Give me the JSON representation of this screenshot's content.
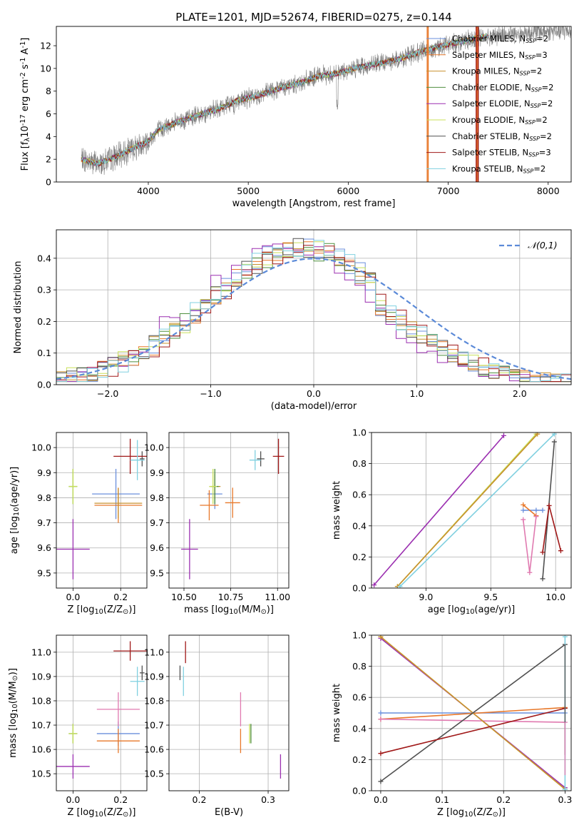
{
  "figure_title": "PLATE=1201, MJD=52674, FIBERID=0275, z=0.144",
  "series_names": [
    "Chabrier MILES, N$_{SSP}$=2",
    "Salpeter MILES, N$_{SSP}$=3",
    "Kroupa MILES, N$_{SSP}$=2",
    "Chabrier ELODIE, N$_{SSP}$=2",
    "Salpeter ELODIE, N$_{SSP}$=2",
    "Kroupa ELODIE, N$_{SSP}$=2",
    "Chabrier STELIB, N$_{SSP}$=2",
    "Salpeter STELIB, N$_{SSP}$=3",
    "Kroupa STELIB, N$_{SSP}$=2"
  ],
  "series_display": [
    {
      "model": "Chabrier MILES",
      "nssp": "2"
    },
    {
      "model": "Salpeter MILES",
      "nssp": "3"
    },
    {
      "model": "Kroupa MILES",
      "nssp": "2"
    },
    {
      "model": "Chabrier ELODIE",
      "nssp": "2"
    },
    {
      "model": "Salpeter ELODIE",
      "nssp": "2"
    },
    {
      "model": "Kroupa ELODIE",
      "nssp": "2"
    },
    {
      "model": "Chabrier STELIB",
      "nssp": "2"
    },
    {
      "model": "Salpeter STELIB",
      "nssp": "3"
    },
    {
      "model": "Kroupa STELIB",
      "nssp": "2"
    }
  ],
  "colors": [
    "#6a8fdc",
    "#e8782a",
    "#c8902e",
    "#4f8f3f",
    "#9b2fb0",
    "#c8e05a",
    "#505050",
    "#a01818",
    "#80d0e0"
  ],
  "data_color": "#808080",
  "gauss_color": "#5b8ad8",
  "chart_data": [
    {
      "id": "spectrum",
      "type": "line",
      "title": "PLATE=1201, MJD=52674, FIBERID=0275, z=0.144",
      "xlabel": "wavelength [Angstrom, rest frame]",
      "ylabel": "Flux [f$_{\\lambda}$10$^{-17}$ erg cm$^{-2}$ s$^{-1}$ A$^{-1}$]",
      "xlim": [
        3080,
        8230
      ],
      "ylim": [
        0,
        13.7
      ],
      "xticks": [
        4000,
        5000,
        6000,
        7000,
        8000
      ],
      "yticks": [
        0,
        2,
        4,
        6,
        8,
        10,
        12
      ],
      "grid": false,
      "legend": "upper-right",
      "continuum": {
        "x": [
          3330,
          3500,
          3700,
          3850,
          4000,
          4100,
          4300,
          4500,
          4700,
          4900,
          5100,
          5300,
          5500,
          5700,
          5900,
          6100,
          6300,
          6500,
          6700,
          6900,
          7100,
          7300,
          7600,
          8000
        ],
        "y": [
          2.0,
          1.6,
          2.3,
          3.0,
          3.6,
          4.6,
          5.3,
          5.9,
          6.4,
          7.2,
          7.6,
          8.2,
          8.7,
          9.3,
          9.6,
          10.1,
          10.4,
          10.8,
          11.4,
          11.9,
          12.3,
          12.7,
          13.0,
          13.3
        ]
      },
      "model_end_wavelength": 7400,
      "drops": [
        {
          "series": 1,
          "x": [
            6790,
            6800,
            7290,
            7300
          ]
        },
        {
          "series": 7,
          "x": [
            7280,
            7300
          ]
        }
      ]
    },
    {
      "id": "residual_histogram",
      "type": "histogram",
      "xlabel": "(data-model)/error",
      "ylabel": "Normed distribution",
      "xlim": [
        -2.5,
        2.5
      ],
      "ylim": [
        0,
        0.49
      ],
      "xticks": [
        -2,
        -1,
        0,
        1,
        2
      ],
      "yticks": [
        0.0,
        0.1,
        0.2,
        0.3,
        0.4
      ],
      "grid": true,
      "legend": "upper-right",
      "reference_curve": "$\\mathcal{N}(0,1)$",
      "bin_width": 0.1,
      "bins_from": -2.5
    },
    {
      "id": "age_vs_Z",
      "type": "errorbar",
      "xlabel": "Z [log$_{10}$(Z/Z$_\\odot$)]",
      "ylabel": "age  [log$_{10}$(age/yr)]",
      "xlim": [
        -0.07,
        0.31
      ],
      "ylim": [
        9.44,
        10.06
      ],
      "xticks": [
        0.0,
        0.2
      ],
      "yticks": [
        9.5,
        9.6,
        9.7,
        9.8,
        9.9,
        10.0
      ],
      "grid": true,
      "points": [
        {
          "series": 0,
          "x": 0.18,
          "y": 9.815,
          "xerr": 0.1,
          "yerr": 0.1
        },
        {
          "series": 1,
          "x": 0.19,
          "y": 9.77,
          "xerr": 0.1,
          "yerr": 0.07
        },
        {
          "series": 2,
          "x": 0.19,
          "y": 9.778,
          "xerr": 0.1,
          "yerr": 0.06
        },
        {
          "series": 3,
          "x": 0.0,
          "y": 9.845,
          "xerr": 0.018,
          "yerr": 0.07
        },
        {
          "series": 4,
          "x": 0.0,
          "y": 9.595,
          "xerr": 0.07,
          "yerr": 0.12
        },
        {
          "series": 5,
          "x": 0.0,
          "y": 9.845,
          "xerr": 0.018,
          "yerr": 0.07
        },
        {
          "series": 6,
          "x": 0.29,
          "y": 9.955,
          "xerr": 0.01,
          "yerr": 0.03
        },
        {
          "series": 7,
          "x": 0.24,
          "y": 9.965,
          "xerr": 0.07,
          "yerr": 0.07
        },
        {
          "series": 8,
          "x": 0.27,
          "y": 9.95,
          "xerr": 0.03,
          "yerr": 0.08
        }
      ]
    },
    {
      "id": "age_vs_mass",
      "type": "errorbar",
      "xlabel": "mass [log$_{10}$(M/M$_\\odot$)]",
      "ylabel": "",
      "xlim": [
        10.42,
        11.06
      ],
      "ylim": [
        9.44,
        10.06
      ],
      "xticks": [
        10.5,
        10.75,
        11.0
      ],
      "yticks": [
        9.5,
        9.6,
        9.7,
        9.8,
        9.9,
        10.0
      ],
      "grid": true,
      "points": [
        {
          "series": 0,
          "x": 10.665,
          "y": 9.815,
          "xerr": 0.04,
          "yerr": 0.06
        },
        {
          "series": 1,
          "x": 10.635,
          "y": 9.77,
          "xerr": 0.05,
          "yerr": 0.06
        },
        {
          "series": 2,
          "x": 10.665,
          "y": 9.845,
          "xerr": 0.03,
          "yerr": 0.05
        },
        {
          "series": 3,
          "x": 10.665,
          "y": 9.845,
          "xerr": 0.02,
          "yerr": 0.07
        },
        {
          "series": 4,
          "x": 10.53,
          "y": 9.595,
          "xerr": 0.045,
          "yerr": 0.12
        },
        {
          "series": 5,
          "x": 10.655,
          "y": 9.845,
          "xerr": 0.02,
          "yerr": 0.07
        },
        {
          "series": 6,
          "x": 10.91,
          "y": 9.955,
          "xerr": 0.02,
          "yerr": 0.03
        },
        {
          "series": 7,
          "x": 11.005,
          "y": 9.965,
          "xerr": 0.03,
          "yerr": 0.07
        },
        {
          "series": 8,
          "x": 10.88,
          "y": 9.95,
          "xerr": 0.03,
          "yerr": 0.04
        },
        {
          "series": 1,
          "x": 10.76,
          "y": 9.78,
          "xerr": 0.04,
          "yerr": 0.06
        }
      ]
    },
    {
      "id": "weight_vs_age",
      "type": "line",
      "xlabel": "age  [log$_{10}$(age/yr)]",
      "ylabel": "mass weight",
      "xlim": [
        8.58,
        10.12
      ],
      "ylim": [
        0,
        1.0
      ],
      "xticks": [
        9.0,
        9.5,
        10.0
      ],
      "yticks": [
        0.0,
        0.2,
        0.4,
        0.6,
        0.8,
        1.0
      ],
      "grid": true,
      "lines": [
        {
          "series": 0,
          "x": [
            9.75,
            9.85,
            9.9
          ],
          "y": [
            0.5,
            0.5,
            0.5
          ]
        },
        {
          "series": 1,
          "x": [
            9.75,
            9.85
          ],
          "y": [
            0.535,
            0.465
          ]
        },
        {
          "series": 4,
          "x": [
            8.6,
            9.6
          ],
          "y": [
            0.02,
            0.98
          ]
        },
        {
          "series": 5,
          "x": [
            8.78,
            9.85
          ],
          "y": [
            0.01,
            0.99
          ]
        },
        {
          "series": 2,
          "x": [
            8.78,
            9.86
          ],
          "y": [
            0.01,
            0.99
          ]
        },
        {
          "series": 8,
          "x": [
            8.8,
            9.99
          ],
          "y": [
            0.01,
            0.99
          ]
        },
        {
          "series": 6,
          "x": [
            9.9,
            9.99
          ],
          "y": [
            0.06,
            0.94
          ]
        },
        {
          "series": 7,
          "x": [
            9.9,
            9.95,
            10.04
          ],
          "y": [
            0.23,
            0.53,
            0.24
          ]
        },
        {
          "series": 9,
          "x": [
            9.75,
            9.8,
            9.85
          ],
          "y": [
            0.44,
            0.1,
            0.46
          ]
        }
      ]
    },
    {
      "id": "mass_vs_Z",
      "type": "errorbar",
      "xlabel": "Z [log$_{10}$(Z/Z$_\\odot$)]",
      "ylabel": "mass [log$_{10}$(M/M$_\\odot$)]",
      "xlim": [
        -0.07,
        0.31
      ],
      "ylim": [
        10.43,
        11.07
      ],
      "xticks": [
        0.0,
        0.2
      ],
      "yticks": [
        10.5,
        10.6,
        10.7,
        10.8,
        10.9,
        11.0
      ],
      "grid": true,
      "points": [
        {
          "series": 0,
          "x": 0.19,
          "y": 10.665,
          "xerr": 0.09,
          "yerr": 0.05
        },
        {
          "series": 1,
          "x": 0.19,
          "y": 10.635,
          "xerr": 0.09,
          "yerr": 0.05
        },
        {
          "series": 3,
          "x": 0.0,
          "y": 10.665,
          "xerr": 0.018,
          "yerr": 0.04
        },
        {
          "series": 4,
          "x": 0.0,
          "y": 10.53,
          "xerr": 0.07,
          "yerr": 0.05
        },
        {
          "series": 5,
          "x": 0.0,
          "y": 10.665,
          "xerr": 0.018,
          "yerr": 0.04
        },
        {
          "series": 6,
          "x": 0.29,
          "y": 10.915,
          "xerr": 0.01,
          "yerr": 0.03
        },
        {
          "series": 7,
          "x": 0.24,
          "y": 11.005,
          "xerr": 0.07,
          "yerr": 0.04
        },
        {
          "series": 8,
          "x": 0.27,
          "y": 10.88,
          "xerr": 0.03,
          "yerr": 0.06
        },
        {
          "series": 9,
          "x": 0.19,
          "y": 10.765,
          "xerr": 0.09,
          "yerr": 0.07
        }
      ]
    },
    {
      "id": "mass_vs_ebv",
      "type": "errorbar",
      "xlabel": "E(B-V)",
      "ylabel": "",
      "xlim": [
        0.156,
        0.33
      ],
      "ylim": [
        10.43,
        11.07
      ],
      "xticks": [
        0.2,
        0.3
      ],
      "yticks": [
        10.5,
        10.6,
        10.7,
        10.8,
        10.9,
        11.0
      ],
      "grid": true,
      "points": [
        {
          "series": 1,
          "x": 0.26,
          "y": 10.635,
          "xerr": 0,
          "yerr": 0.05
        },
        {
          "series": 9,
          "x": 0.26,
          "y": 10.765,
          "xerr": 0,
          "yerr": 0.07
        },
        {
          "series": 3,
          "x": 0.275,
          "y": 10.665,
          "xerr": 0,
          "yerr": 0.04
        },
        {
          "series": 5,
          "x": 0.273,
          "y": 10.665,
          "xerr": 0,
          "yerr": 0.04
        },
        {
          "series": 4,
          "x": 0.318,
          "y": 10.53,
          "xerr": 0,
          "yerr": 0.05
        },
        {
          "series": 6,
          "x": 0.172,
          "y": 10.915,
          "xerr": 0,
          "yerr": 0.03
        },
        {
          "series": 7,
          "x": 0.18,
          "y": 11.0,
          "xerr": 0,
          "yerr": 0.045
        },
        {
          "series": 8,
          "x": 0.177,
          "y": 10.88,
          "xerr": 0,
          "yerr": 0.06
        }
      ]
    },
    {
      "id": "weight_vs_Z",
      "type": "line",
      "xlabel": "Z [log$_{10}$(Z/Z$_\\odot$)]",
      "ylabel": "mass weight",
      "xlim": [
        -0.015,
        0.31
      ],
      "ylim": [
        0,
        1.0
      ],
      "xticks": [
        0.0,
        0.1,
        0.2,
        0.3
      ],
      "yticks": [
        0.0,
        0.2,
        0.4,
        0.6,
        0.8,
        1.0
      ],
      "grid": true,
      "lines": [
        {
          "series": 0,
          "x": [
            0.0,
            0.3
          ],
          "y": [
            0.5,
            0.5
          ]
        },
        {
          "series": 1,
          "x": [
            0.0,
            0.3
          ],
          "y": [
            0.46,
            0.535
          ]
        },
        {
          "series": 9,
          "x": [
            0.0,
            0.3
          ],
          "y": [
            0.46,
            0.44
          ]
        },
        {
          "series": 4,
          "x": [
            0.0,
            0.3
          ],
          "y": [
            0.98,
            0.02
          ]
        },
        {
          "series": 5,
          "x": [
            0.0,
            0.3
          ],
          "y": [
            0.99,
            0.01
          ]
        },
        {
          "series": 2,
          "x": [
            0.0,
            0.3
          ],
          "y": [
            0.99,
            0.01
          ]
        },
        {
          "series": 6,
          "x": [
            0.0,
            0.3
          ],
          "y": [
            0.06,
            0.94
          ]
        },
        {
          "series": 7,
          "x": [
            0.0,
            0.3
          ],
          "y": [
            0.24,
            0.53
          ]
        },
        {
          "series": 8,
          "x": [
            0.3,
            0.3
          ],
          "y": [
            0.01,
            0.99
          ]
        }
      ],
      "verticals": [
        {
          "series": 6,
          "x": 0.3,
          "y": [
            0.23,
            0.94
          ]
        },
        {
          "series": 9,
          "x": 0.3,
          "y": [
            0.1,
            0.44
          ]
        }
      ]
    }
  ]
}
